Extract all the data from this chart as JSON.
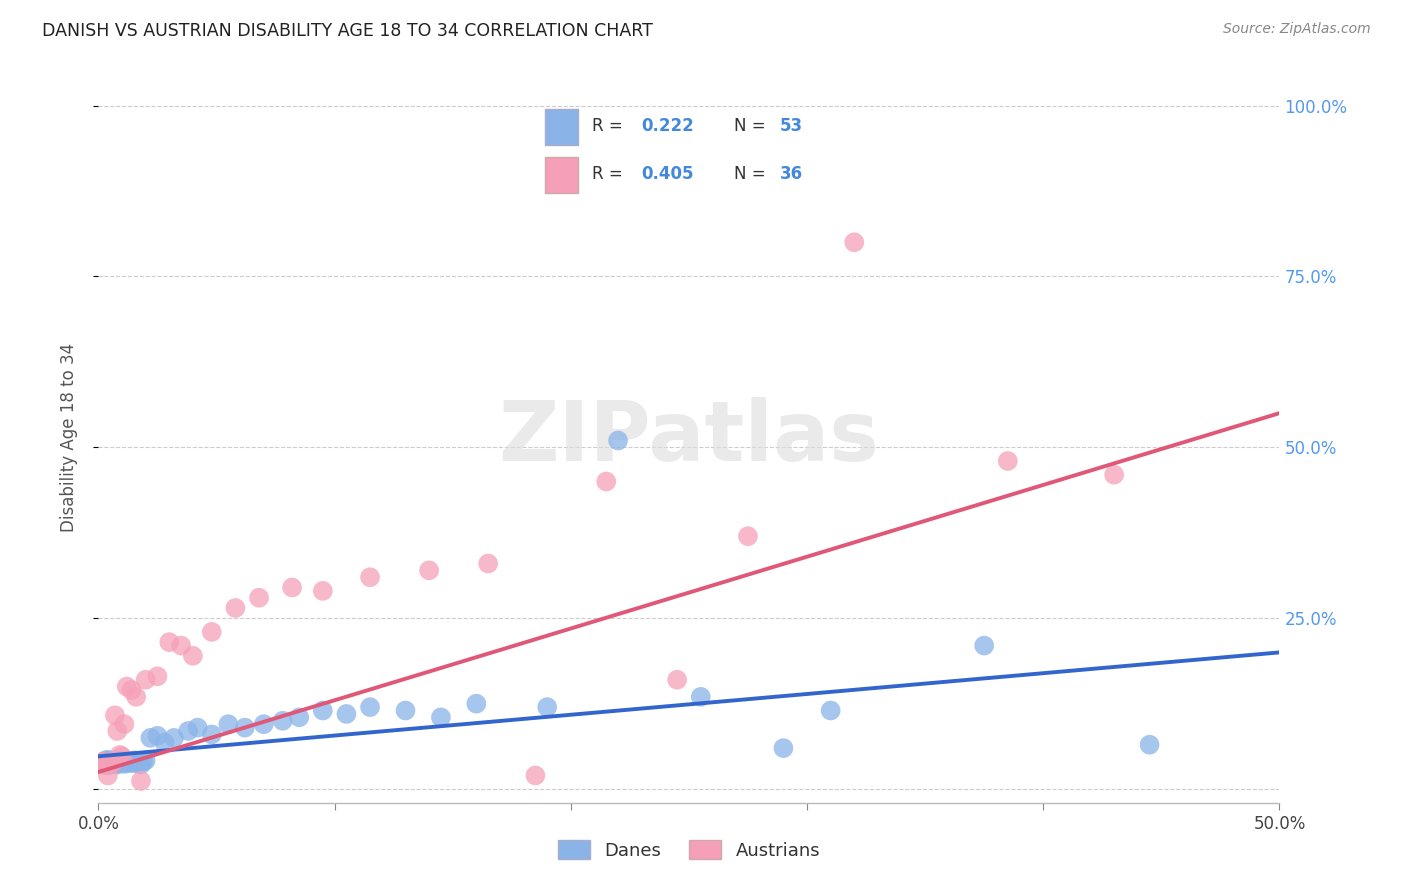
{
  "title": "DANISH VS AUSTRIAN DISABILITY AGE 18 TO 34 CORRELATION CHART",
  "source": "Source: ZipAtlas.com",
  "ylabel": "Disability Age 18 to 34",
  "xlim": [
    0.0,
    0.5
  ],
  "ylim": [
    -0.02,
    1.05
  ],
  "xticks": [
    0.0,
    0.1,
    0.2,
    0.3,
    0.4,
    0.5
  ],
  "xtick_labels": [
    "0.0%",
    "",
    "",
    "",
    "",
    "50.0%"
  ],
  "yticks": [
    0.0,
    0.25,
    0.5,
    0.75,
    1.0
  ],
  "ytick_labels": [
    "",
    "25.0%",
    "50.0%",
    "75.0%",
    "100.0%"
  ],
  "dane_color": "#8ab4e8",
  "austrian_color": "#f5a0b8",
  "dane_line_color": "#3366cc",
  "austrian_line_color": "#e05878",
  "watermark": "ZIPatlas",
  "danes_x": [
    0.001,
    0.002,
    0.003,
    0.003,
    0.004,
    0.004,
    0.005,
    0.005,
    0.006,
    0.006,
    0.007,
    0.007,
    0.008,
    0.008,
    0.009,
    0.009,
    0.01,
    0.01,
    0.011,
    0.012,
    0.013,
    0.014,
    0.015,
    0.016,
    0.017,
    0.018,
    0.019,
    0.02,
    0.022,
    0.025,
    0.028,
    0.032,
    0.038,
    0.042,
    0.048,
    0.055,
    0.062,
    0.07,
    0.078,
    0.085,
    0.095,
    0.105,
    0.115,
    0.13,
    0.145,
    0.16,
    0.19,
    0.22,
    0.255,
    0.29,
    0.31,
    0.375,
    0.445
  ],
  "danes_y": [
    0.038,
    0.04,
    0.038,
    0.042,
    0.035,
    0.043,
    0.036,
    0.041,
    0.038,
    0.04,
    0.037,
    0.042,
    0.038,
    0.036,
    0.04,
    0.038,
    0.04,
    0.042,
    0.037,
    0.038,
    0.04,
    0.038,
    0.042,
    0.038,
    0.04,
    0.036,
    0.04,
    0.042,
    0.075,
    0.078,
    0.068,
    0.075,
    0.085,
    0.09,
    0.08,
    0.095,
    0.09,
    0.095,
    0.1,
    0.105,
    0.115,
    0.11,
    0.12,
    0.115,
    0.105,
    0.125,
    0.12,
    0.51,
    0.135,
    0.06,
    0.115,
    0.21,
    0.065
  ],
  "austrians_x": [
    0.001,
    0.002,
    0.003,
    0.004,
    0.005,
    0.006,
    0.007,
    0.008,
    0.009,
    0.01,
    0.011,
    0.012,
    0.014,
    0.016,
    0.018,
    0.02,
    0.025,
    0.03,
    0.035,
    0.04,
    0.048,
    0.058,
    0.068,
    0.082,
    0.095,
    0.115,
    0.14,
    0.165,
    0.185,
    0.215,
    0.245,
    0.275,
    0.32,
    0.385,
    0.43
  ],
  "austrians_y": [
    0.038,
    0.04,
    0.035,
    0.02,
    0.04,
    0.038,
    0.108,
    0.085,
    0.05,
    0.048,
    0.095,
    0.15,
    0.145,
    0.135,
    0.012,
    0.16,
    0.165,
    0.215,
    0.21,
    0.195,
    0.23,
    0.265,
    0.28,
    0.295,
    0.29,
    0.31,
    0.32,
    0.33,
    0.02,
    0.45,
    0.16,
    0.37,
    0.8,
    0.48,
    0.46
  ],
  "dane_line_x": [
    0.0,
    0.5
  ],
  "dane_line_y": [
    0.048,
    0.2
  ],
  "austrian_line_x": [
    0.0,
    0.5
  ],
  "austrian_line_y": [
    0.025,
    0.55
  ]
}
